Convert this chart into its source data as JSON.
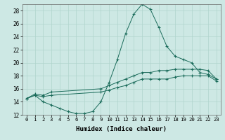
{
  "xlabel": "Humidex (Indice chaleur)",
  "bg_color": "#cde8e4",
  "grid_color": "#b0d4cc",
  "line_color": "#1a6b5a",
  "xlim": [
    -0.5,
    23.5
  ],
  "ylim": [
    12,
    29
  ],
  "xticks": [
    0,
    1,
    2,
    3,
    4,
    5,
    6,
    7,
    8,
    9,
    10,
    11,
    12,
    13,
    14,
    15,
    16,
    17,
    18,
    19,
    20,
    21,
    22,
    23
  ],
  "yticks": [
    12,
    14,
    16,
    18,
    20,
    22,
    24,
    26,
    28
  ],
  "series": [
    {
      "x": [
        0,
        1,
        2,
        3,
        4,
        5,
        6,
        7,
        8,
        9,
        10,
        11,
        12,
        13,
        14,
        15,
        16,
        17,
        18,
        19,
        20,
        21,
        22,
        23
      ],
      "y": [
        14.5,
        15.0,
        14.0,
        13.5,
        13.0,
        12.5,
        12.2,
        12.2,
        12.5,
        14.0,
        17.0,
        20.5,
        24.5,
        27.5,
        29.0,
        28.2,
        25.5,
        22.5,
        21.0,
        20.5,
        20.0,
        18.5,
        18.2,
        17.5
      ]
    },
    {
      "x": [
        0,
        1,
        2,
        3,
        9,
        10,
        11,
        12,
        13,
        14,
        15,
        16,
        17,
        18,
        19,
        20,
        21,
        22,
        23
      ],
      "y": [
        14.5,
        15.2,
        15.0,
        15.5,
        16.0,
        16.5,
        17.0,
        17.5,
        18.0,
        18.5,
        18.5,
        18.8,
        18.8,
        19.0,
        19.0,
        19.0,
        19.0,
        18.8,
        17.5
      ]
    },
    {
      "x": [
        0,
        1,
        2,
        3,
        9,
        10,
        11,
        12,
        13,
        14,
        15,
        16,
        17,
        18,
        19,
        20,
        21,
        22,
        23
      ],
      "y": [
        14.5,
        15.0,
        14.8,
        15.0,
        15.5,
        15.8,
        16.2,
        16.5,
        17.0,
        17.5,
        17.5,
        17.5,
        17.5,
        17.8,
        18.0,
        18.0,
        18.0,
        18.0,
        17.2
      ]
    }
  ]
}
